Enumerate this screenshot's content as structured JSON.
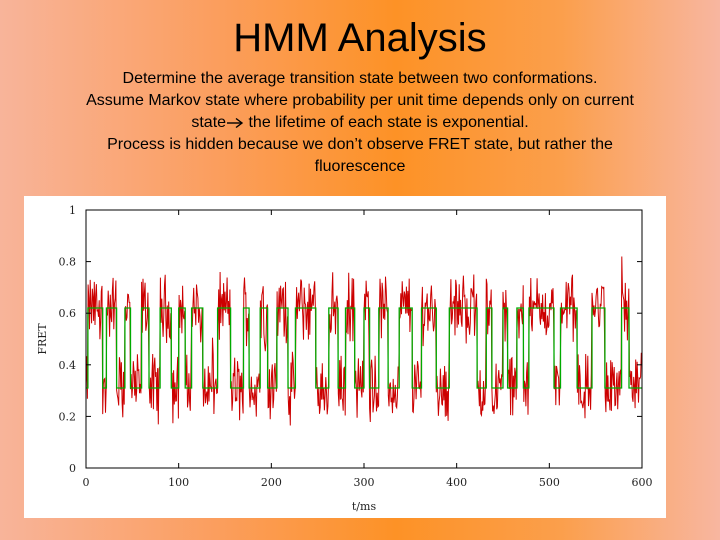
{
  "slide": {
    "title": "HMM Analysis",
    "line1": "Determine the average transition state between two conformations.",
    "line2": "Assume Markov state where probability per unit time depends only on current",
    "line3_pre": "state",
    "line3_post": " the lifetime of each state is exponential.",
    "line4": "Process is hidden because we don’t observe FRET state, but rather the",
    "line5": "fluorescence"
  },
  "colors": {
    "fret_trace": "#cc0000",
    "hmm_fit": "#00aa00",
    "axis": "#000000"
  },
  "chart_data": {
    "type": "line",
    "xlabel": "t/ms",
    "ylabel": "FRET",
    "xlim": [
      0,
      600
    ],
    "ylim": [
      0,
      1
    ],
    "xticks": [
      0,
      100,
      200,
      300,
      400,
      500,
      600
    ],
    "yticks": [
      0,
      0.2,
      0.4,
      0.6,
      0.8,
      1
    ],
    "ytick_labels": [
      "0",
      "0.2",
      "0.4",
      "0.6",
      "0.8",
      "1"
    ],
    "high_level": 0.62,
    "low_level": 0.31,
    "series": [
      {
        "values": [
          [
            0,
            0.31
          ],
          [
            2,
            0.31
          ],
          [
            2,
            0.62
          ],
          [
            18,
            0.62
          ],
          [
            18,
            0.31
          ],
          [
            22,
            0.31
          ],
          [
            22,
            0.62
          ],
          [
            33,
            0.62
          ],
          [
            33,
            0.31
          ],
          [
            42,
            0.31
          ],
          [
            42,
            0.62
          ],
          [
            48,
            0.62
          ],
          [
            48,
            0.31
          ],
          [
            60,
            0.31
          ],
          [
            60,
            0.62
          ],
          [
            68,
            0.62
          ],
          [
            68,
            0.31
          ],
          [
            80,
            0.31
          ],
          [
            80,
            0.62
          ],
          [
            92,
            0.62
          ],
          [
            92,
            0.31
          ],
          [
            100,
            0.31
          ],
          [
            100,
            0.62
          ],
          [
            107,
            0.62
          ],
          [
            107,
            0.31
          ],
          [
            114,
            0.31
          ],
          [
            114,
            0.62
          ],
          [
            126,
            0.62
          ],
          [
            126,
            0.31
          ],
          [
            142,
            0.31
          ],
          [
            142,
            0.62
          ],
          [
            156,
            0.62
          ],
          [
            156,
            0.31
          ],
          [
            170,
            0.31
          ],
          [
            170,
            0.62
          ],
          [
            176,
            0.62
          ],
          [
            176,
            0.31
          ],
          [
            188,
            0.31
          ],
          [
            188,
            0.62
          ],
          [
            196,
            0.62
          ],
          [
            196,
            0.31
          ],
          [
            206,
            0.31
          ],
          [
            206,
            0.62
          ],
          [
            218,
            0.62
          ],
          [
            218,
            0.31
          ],
          [
            226,
            0.31
          ],
          [
            226,
            0.62
          ],
          [
            248,
            0.62
          ],
          [
            248,
            0.31
          ],
          [
            262,
            0.31
          ],
          [
            262,
            0.62
          ],
          [
            272,
            0.62
          ],
          [
            272,
            0.31
          ],
          [
            280,
            0.31
          ],
          [
            280,
            0.62
          ],
          [
            290,
            0.62
          ],
          [
            290,
            0.31
          ],
          [
            300,
            0.31
          ],
          [
            300,
            0.62
          ],
          [
            306,
            0.62
          ],
          [
            306,
            0.31
          ],
          [
            316,
            0.31
          ],
          [
            316,
            0.62
          ],
          [
            326,
            0.62
          ],
          [
            326,
            0.31
          ],
          [
            338,
            0.31
          ],
          [
            338,
            0.62
          ],
          [
            352,
            0.62
          ],
          [
            352,
            0.31
          ],
          [
            362,
            0.31
          ],
          [
            362,
            0.62
          ],
          [
            378,
            0.62
          ],
          [
            378,
            0.31
          ],
          [
            392,
            0.31
          ],
          [
            392,
            0.62
          ],
          [
            422,
            0.62
          ],
          [
            422,
            0.31
          ],
          [
            432,
            0.31
          ],
          [
            432,
            0.62
          ],
          [
            438,
            0.62
          ],
          [
            438,
            0.31
          ],
          [
            450,
            0.31
          ],
          [
            450,
            0.62
          ],
          [
            455,
            0.62
          ],
          [
            455,
            0.31
          ],
          [
            465,
            0.31
          ],
          [
            465,
            0.62
          ],
          [
            472,
            0.62
          ],
          [
            472,
            0.31
          ],
          [
            478,
            0.31
          ],
          [
            478,
            0.62
          ],
          [
            505,
            0.62
          ],
          [
            505,
            0.31
          ],
          [
            512,
            0.31
          ],
          [
            512,
            0.62
          ],
          [
            530,
            0.62
          ],
          [
            530,
            0.31
          ],
          [
            546,
            0.31
          ],
          [
            546,
            0.62
          ],
          [
            560,
            0.62
          ],
          [
            560,
            0.31
          ],
          [
            578,
            0.31
          ],
          [
            578,
            0.62
          ],
          [
            586,
            0.62
          ],
          [
            586,
            0.31
          ],
          [
            600,
            0.31
          ]
        ]
      }
    ]
  }
}
